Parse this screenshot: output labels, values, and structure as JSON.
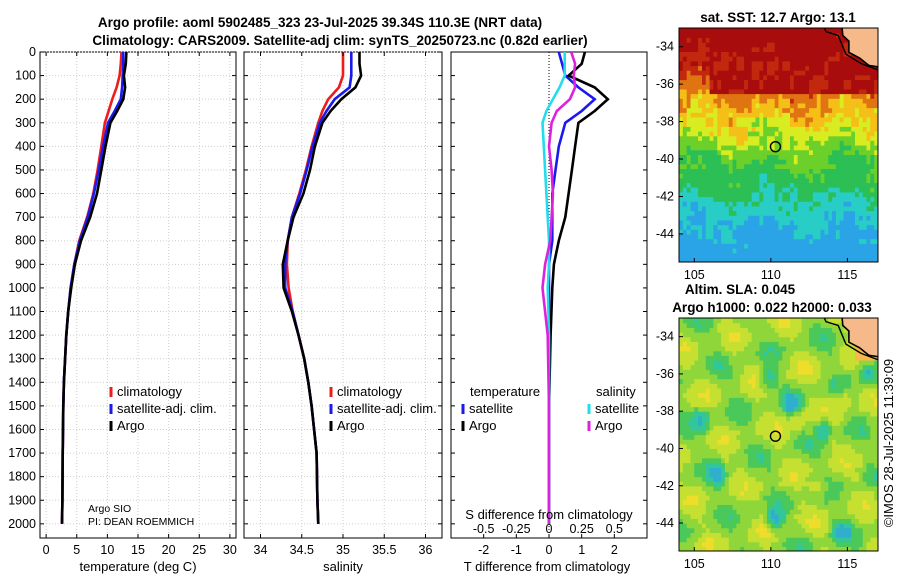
{
  "title": {
    "line1": "Argo profile: aoml 5902485_323 23-Jul-2025 39.34S 110.3E (NRT data)",
    "line2": "Climatology: CARS2009. Satellite-adj clim: synTS_20250723.nc (0.82d earlier)"
  },
  "credit": {
    "org": "Argo SIO",
    "pi": "PI: DEAN ROEMMICH"
  },
  "watermark": "©IMOS 28-Jul-2025 11:39:09",
  "colors": {
    "climatology": "#ee1c1c",
    "satellite": "#1a1aee",
    "argo": "#000000",
    "sal_satellite": "#22ddee",
    "sal_argo": "#dd22dd"
  },
  "chart_data": [
    {
      "type": "line",
      "id": "temperature",
      "xlabel": "temperature (deg C)",
      "xlim": [
        -1,
        31
      ],
      "xticks": [
        0,
        5,
        10,
        15,
        20,
        25,
        30
      ],
      "ylim": [
        2060,
        0
      ],
      "yticks": [
        0,
        100,
        200,
        300,
        400,
        500,
        600,
        700,
        800,
        900,
        1000,
        1100,
        1200,
        1300,
        1400,
        1500,
        1600,
        1700,
        1800,
        1900,
        2000
      ],
      "grid": true,
      "legend": [
        "climatology",
        "satellite-adj. clim.",
        "Argo"
      ],
      "series": [
        {
          "name": "climatology",
          "color": "#ee1c1c",
          "x": [
            12.3,
            12.2,
            12.0,
            11.5,
            10.8,
            10.2,
            9.6,
            9.0,
            8.4,
            7.7,
            6.7,
            5.4,
            4.6,
            4.0,
            3.6,
            3.3,
            3.1,
            2.9,
            2.8,
            2.7,
            2.65,
            2.6
          ],
          "depth": [
            0,
            50,
            100,
            150,
            200,
            250,
            300,
            400,
            500,
            600,
            700,
            800,
            900,
            1000,
            1100,
            1200,
            1300,
            1400,
            1500,
            1700,
            1900,
            2000
          ]
        },
        {
          "name": "satellite-adj. clim.",
          "color": "#1a1aee",
          "x": [
            12.6,
            12.6,
            12.5,
            12.4,
            12.2,
            11.2,
            10.1,
            9.3,
            8.6,
            7.8,
            6.8,
            5.5,
            4.6,
            4.0,
            3.6,
            3.3,
            3.1,
            2.9,
            2.8,
            2.7,
            2.65,
            2.6
          ],
          "depth": [
            0,
            50,
            100,
            150,
            200,
            250,
            300,
            400,
            500,
            600,
            700,
            800,
            900,
            1000,
            1100,
            1200,
            1300,
            1400,
            1500,
            1700,
            1900,
            2000
          ]
        },
        {
          "name": "Argo",
          "color": "#000000",
          "x": [
            13.1,
            13.0,
            12.7,
            12.9,
            12.6,
            11.6,
            10.5,
            9.7,
            9.0,
            8.3,
            7.2,
            5.7,
            4.7,
            4.1,
            3.6,
            3.3,
            3.1,
            2.9,
            2.8,
            2.7,
            2.65,
            2.6
          ],
          "depth": [
            0,
            50,
            100,
            150,
            200,
            250,
            300,
            400,
            500,
            600,
            700,
            800,
            900,
            1000,
            1100,
            1200,
            1300,
            1400,
            1500,
            1700,
            1900,
            2000
          ]
        }
      ]
    },
    {
      "type": "line",
      "id": "salinity",
      "xlabel": "salinity",
      "xlim": [
        33.8,
        36.2
      ],
      "xticks": [
        34,
        34.5,
        35,
        35.5,
        36
      ],
      "xticklabels": [
        "34",
        "34.5",
        "35",
        "35.5",
        "36"
      ],
      "ylim": [
        2060,
        0
      ],
      "grid": true,
      "legend": [
        "climatology",
        "satellite-adj. clim.",
        "Argo"
      ],
      "series": [
        {
          "name": "climatology",
          "color": "#ee1c1c",
          "x": [
            35.0,
            35.0,
            35.0,
            34.95,
            34.82,
            34.75,
            34.7,
            34.62,
            34.55,
            34.47,
            34.38,
            34.33,
            34.32,
            34.34,
            34.39,
            34.46,
            34.53,
            34.58,
            34.62,
            34.65,
            34.68,
            34.69,
            34.7
          ],
          "depth": [
            0,
            50,
            100,
            150,
            200,
            250,
            300,
            400,
            500,
            600,
            700,
            800,
            900,
            1000,
            1100,
            1200,
            1300,
            1400,
            1500,
            1600,
            1700,
            1900,
            2000
          ]
        },
        {
          "name": "satellite-adj. clim.",
          "color": "#1a1aee",
          "x": [
            35.1,
            35.1,
            35.1,
            35.08,
            34.9,
            34.8,
            34.72,
            34.63,
            34.56,
            34.48,
            34.38,
            34.33,
            34.3,
            34.3,
            34.39,
            34.46,
            34.53,
            34.58,
            34.62,
            34.65,
            34.68,
            34.69,
            34.7
          ],
          "depth": [
            0,
            50,
            100,
            150,
            200,
            250,
            300,
            400,
            500,
            600,
            700,
            800,
            900,
            1000,
            1100,
            1200,
            1300,
            1400,
            1500,
            1600,
            1700,
            1900,
            2000
          ]
        },
        {
          "name": "Argo",
          "color": "#000000",
          "x": [
            35.2,
            35.2,
            35.22,
            35.15,
            34.98,
            34.85,
            34.75,
            34.66,
            34.6,
            34.52,
            34.4,
            34.33,
            34.27,
            34.28,
            34.38,
            34.46,
            34.53,
            34.58,
            34.62,
            34.65,
            34.68,
            34.69,
            34.7
          ],
          "depth": [
            0,
            50,
            100,
            150,
            200,
            250,
            300,
            400,
            500,
            600,
            700,
            800,
            900,
            1000,
            1100,
            1200,
            1300,
            1400,
            1500,
            1600,
            1700,
            1900,
            2000
          ]
        }
      ]
    },
    {
      "type": "line",
      "id": "difference",
      "xlabel": "T difference from climatology",
      "xlabel_top": "S difference from climatology",
      "xlim": [
        -3,
        3
      ],
      "xticks": [
        -2,
        -1,
        0,
        1,
        2
      ],
      "xticklabels": [
        "-2",
        "-1",
        "0",
        "1",
        "2"
      ],
      "sal_ticklabels": [
        "-0.5",
        "-0.25",
        "0",
        "0.25",
        "0.5"
      ],
      "ylim": [
        2060,
        0
      ],
      "grid": false,
      "legend_temperature_title": "temperature",
      "legend_salinity_title": "salinity",
      "legend_temperature": [
        "satellite",
        "Argo"
      ],
      "legend_salinity": [
        "satellite",
        "Argo"
      ],
      "series": [
        {
          "name": "T satellite",
          "color": "#1a1aee",
          "x": [
            0.3,
            0.4,
            0.5,
            0.9,
            1.4,
            1.0,
            0.5,
            0.3,
            0.2,
            0.1,
            0.1,
            0.1,
            0.0,
            0.0,
            0.0,
            0.0,
            0.0,
            0.0
          ],
          "depth": [
            0,
            50,
            100,
            150,
            200,
            250,
            300,
            400,
            500,
            600,
            700,
            800,
            900,
            1000,
            1200,
            1500,
            1800,
            2000
          ]
        },
        {
          "name": "T Argo",
          "color": "#000000",
          "x": [
            1.1,
            1.0,
            0.6,
            1.4,
            1.8,
            1.4,
            0.9,
            0.8,
            0.7,
            0.6,
            0.5,
            0.3,
            0.15,
            0.1,
            0.05,
            0.0,
            0.0,
            0.0
          ],
          "depth": [
            0,
            50,
            100,
            150,
            200,
            250,
            300,
            400,
            500,
            600,
            700,
            800,
            900,
            1000,
            1200,
            1500,
            1800,
            2000
          ]
        },
        {
          "name": "S satellite",
          "color": "#22ddee",
          "x": [
            0.12,
            0.12,
            0.12,
            0.08,
            0.03,
            -0.02,
            -0.05,
            -0.04,
            -0.03,
            -0.02,
            -0.01,
            0.0,
            0.0,
            -0.01,
            0.0,
            0.0,
            0.0,
            0.0
          ],
          "depth": [
            0,
            50,
            100,
            150,
            200,
            250,
            300,
            400,
            500,
            600,
            700,
            800,
            900,
            1000,
            1200,
            1500,
            1800,
            2000
          ]
        },
        {
          "name": "S Argo",
          "color": "#dd22dd",
          "x": [
            0.17,
            0.2,
            0.19,
            0.2,
            0.16,
            0.06,
            0.02,
            0.0,
            0.02,
            0.03,
            0.02,
            0.01,
            -0.03,
            -0.05,
            -0.01,
            0.0,
            0.0,
            0.0
          ],
          "depth": [
            0,
            50,
            100,
            150,
            200,
            250,
            300,
            400,
            500,
            600,
            700,
            800,
            900,
            1000,
            1200,
            1500,
            1800,
            2000
          ]
        }
      ]
    },
    {
      "type": "heatmap",
      "id": "sst_map",
      "title": "sat. SST: 12.7 Argo: 13.1",
      "lon_range": [
        104,
        117
      ],
      "lat_range": [
        -45.5,
        -33
      ],
      "xticks": [
        105,
        110,
        115
      ],
      "yticks": [
        -34,
        -36,
        -38,
        -40,
        -42,
        -44
      ],
      "argo_position": [
        110.3,
        -39.34
      ]
    },
    {
      "type": "heatmap",
      "id": "sla_map",
      "title_line1": "Altim. SLA: 0.045",
      "title_line2": "Argo h1000: 0.022 h2000: 0.033",
      "lon_range": [
        104,
        117
      ],
      "lat_range": [
        -45.5,
        -33
      ],
      "xticks": [
        105,
        110,
        115
      ],
      "yticks": [
        -34,
        -36,
        -38,
        -40,
        -42,
        -44
      ],
      "argo_position": [
        110.3,
        -39.34
      ]
    }
  ]
}
